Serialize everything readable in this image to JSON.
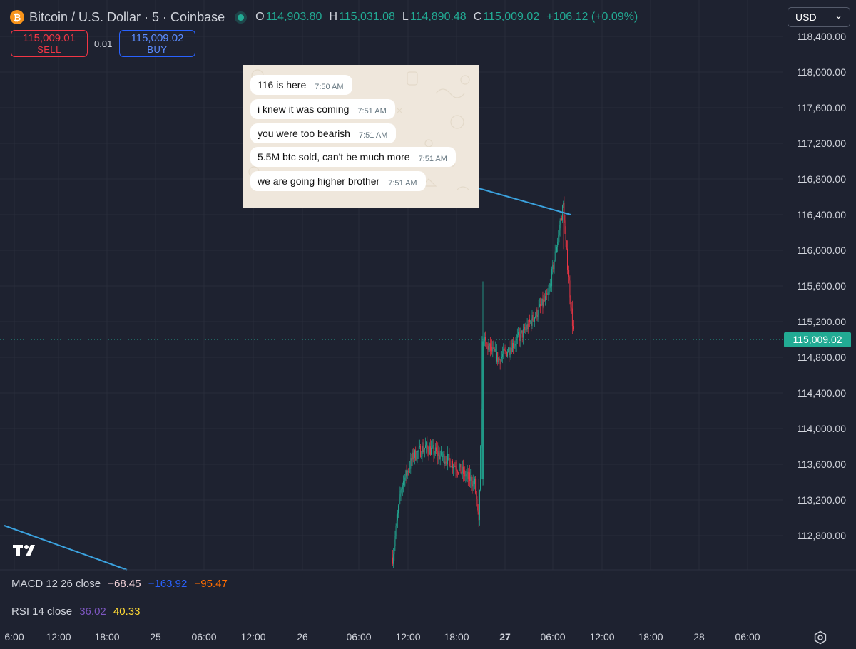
{
  "header": {
    "logo_glyph": "₿",
    "title": "Bitcoin / U.S. Dollar · 5 · Coinbase",
    "ohlc": [
      {
        "label": "O",
        "value": "114,903.80"
      },
      {
        "label": "H",
        "value": "115,031.08"
      },
      {
        "label": "L",
        "value": "114,890.48"
      },
      {
        "label": "C",
        "value": "115,009.02"
      }
    ],
    "change": "+106.12 (+0.09%)",
    "accent_up": "#22ab94",
    "accent_down": "#f23645"
  },
  "trade": {
    "sell_price": "115,009.01",
    "sell_label": "SELL",
    "spread": "0.01",
    "buy_price": "115,009.02",
    "buy_label": "BUY"
  },
  "currency": {
    "selected": "USD"
  },
  "price_axis": {
    "labels": [
      "118,400.00",
      "118,000.00",
      "117,600.00",
      "117,200.00",
      "116,800.00",
      "116,400.00",
      "116,000.00",
      "115,600.00",
      "115,200.00",
      "114,800.00",
      "114,400.00",
      "114,000.00",
      "113,600.00",
      "113,200.00",
      "112,800.00"
    ],
    "current_price": "115,009.02"
  },
  "time_axis": {
    "labels": [
      "6:00",
      "12:00",
      "18:00",
      "25",
      "06:00",
      "12:00",
      "26",
      "06:00",
      "12:00",
      "18:00",
      "27",
      "06:00",
      "12:00",
      "18:00",
      "28",
      "06:00"
    ],
    "bold_label": "27"
  },
  "messages": [
    {
      "text": "116 is here",
      "time": "7:50 AM"
    },
    {
      "text": "i knew it was coming",
      "time": "7:51 AM"
    },
    {
      "text": "you were too bearish",
      "time": "7:51 AM"
    },
    {
      "text": "5.5M btc sold, can't be much more",
      "time": "7:51 AM"
    },
    {
      "text": "we are going higher brother",
      "time": "7:51 AM"
    }
  ],
  "indicators": {
    "macd": {
      "label": "MACD 12 26 close",
      "values": [
        "−68.45",
        "−163.92",
        "−95.47"
      ],
      "colors": [
        "#f0d0d6",
        "#2962ff",
        "#ff6d00"
      ]
    },
    "rsi": {
      "label": "RSI 14 close",
      "values": [
        "36.02",
        "40.33"
      ],
      "colors": [
        "#7e57c2",
        "#fdd835"
      ]
    }
  },
  "icons": {
    "logo": "tradingview-logo-icon",
    "settings": "gear-icon",
    "chevron": "chevron-down-icon"
  },
  "chart_data": {
    "type": "candlestick",
    "title": "Bitcoin / U.S. Dollar · 5 · Coinbase",
    "ylim": [
      112400,
      118600
    ],
    "current_price": 115009.02,
    "price_path": [
      {
        "t": "26 11:00",
        "price": 112550
      },
      {
        "t": "26 12:00",
        "price": 113300
      },
      {
        "t": "26 13:30",
        "price": 113650
      },
      {
        "t": "26 15:00",
        "price": 113750
      },
      {
        "t": "26 18:00",
        "price": 113600
      },
      {
        "t": "26 21:00",
        "price": 113350
      },
      {
        "t": "26 21:30",
        "price": 112900
      },
      {
        "t": "26 22:00",
        "price": 114900
      },
      {
        "t": "27 00:00",
        "price": 114700
      },
      {
        "t": "27 03:00",
        "price": 115000
      },
      {
        "t": "27 06:00",
        "price": 115400
      },
      {
        "t": "27 07:50",
        "price": 116400
      },
      {
        "t": "27 08:00",
        "price": 116050
      },
      {
        "t": "27 09:00",
        "price": 115009
      }
    ]
  }
}
